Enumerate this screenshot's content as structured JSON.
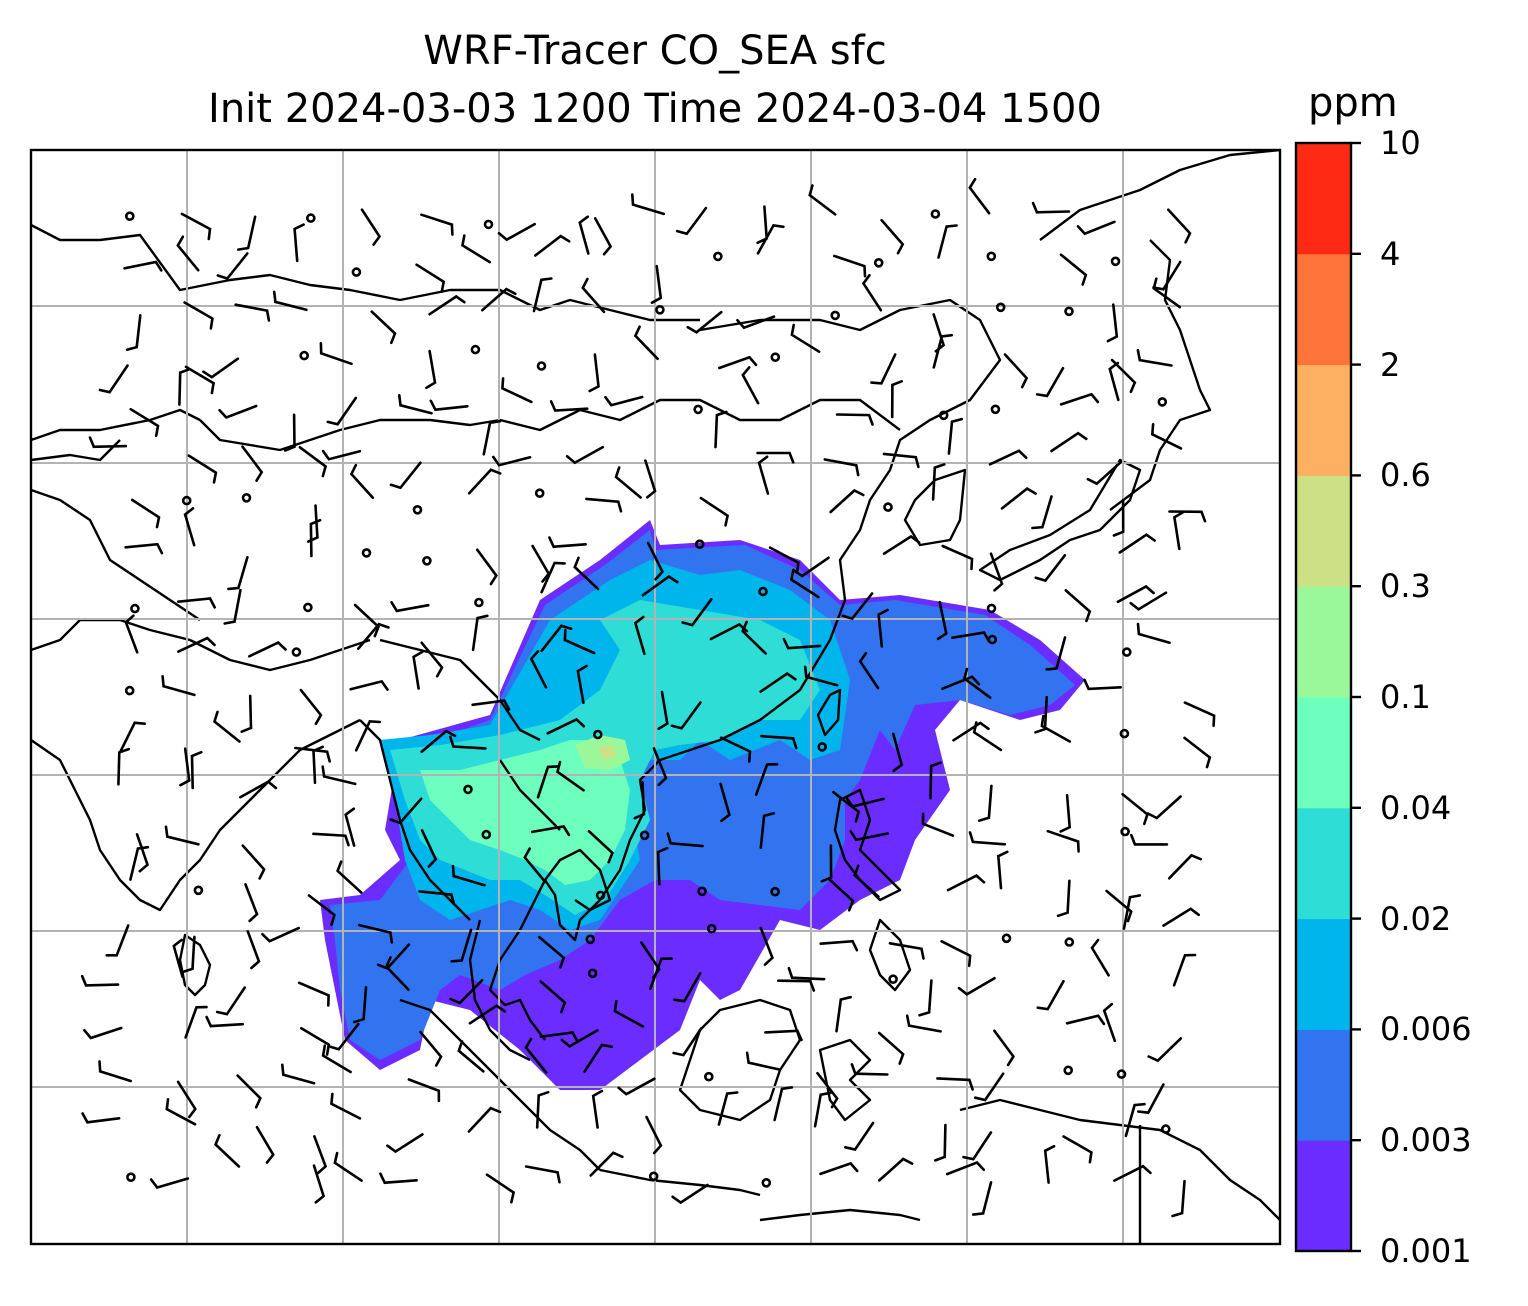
{
  "title": {
    "line1": "WRF-Tracer CO_SEA sfc",
    "line2": "Init 2024-03-03 1200 Time 2024-03-04 1500"
  },
  "colorbar": {
    "unit": "ppm",
    "levels": [
      "0.001",
      "0.003",
      "0.006",
      "0.02",
      "0.04",
      "0.1",
      "0.3",
      "0.6",
      "2",
      "4",
      "10"
    ],
    "colors": [
      "#6a2cff",
      "#3274f0",
      "#00b4ec",
      "#2fddd7",
      "#6cffbe",
      "#9af89a",
      "#cde085",
      "#fdb062",
      "#fe7439",
      "#ff2a14"
    ]
  },
  "map": {
    "content": "surface CO tracer concentration with wind barbs over Asia / Southeast Asia",
    "gridlines": "on",
    "coastlines": "on",
    "background": "#ffffff"
  }
}
